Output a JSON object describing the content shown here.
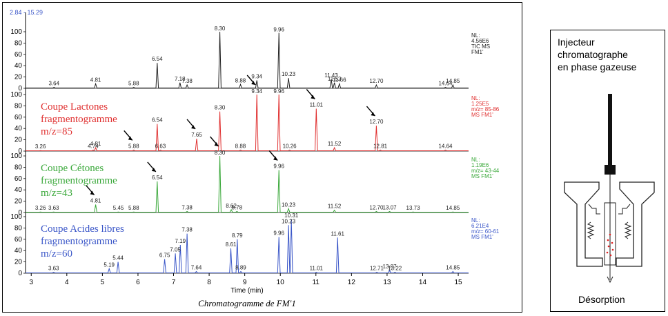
{
  "chart_data": {
    "type": "line",
    "range_label": "2.84 - 15.29",
    "x_axis": {
      "label": "Time (min)",
      "min": 2.84,
      "max": 15.29,
      "ticks": [
        3,
        4,
        5,
        6,
        7,
        8,
        9,
        10,
        11,
        12,
        13,
        14,
        15
      ]
    },
    "y_ticks": [
      "0",
      "20",
      "40",
      "60",
      "80",
      "100"
    ],
    "caption": "Chromatogramme de FM'1",
    "panels": [
      {
        "color": "#222222",
        "nl": [
          "NL:",
          "4.56E6",
          "TIC MS",
          "FM1'"
        ],
        "label": [],
        "peaks": [
          {
            "t": 3.64,
            "h": 2
          },
          {
            "t": 4.81,
            "h": 8
          },
          {
            "t": 5.88,
            "h": 2
          },
          {
            "t": 6.54,
            "h": 45
          },
          {
            "t": 7.18,
            "h": 10
          },
          {
            "t": 7.38,
            "h": 6
          },
          {
            "t": 8.3,
            "h": 100
          },
          {
            "t": 8.88,
            "h": 7
          },
          {
            "t": 9.34,
            "h": 14
          },
          {
            "t": 9.96,
            "h": 98
          },
          {
            "t": 10.23,
            "h": 18
          },
          {
            "t": 11.43,
            "h": 16
          },
          {
            "t": 11.52,
            "h": 10
          },
          {
            "t": 11.66,
            "h": 8
          },
          {
            "t": 12.7,
            "h": 6
          },
          {
            "t": 14.64,
            "h": 2
          },
          {
            "t": 14.85,
            "h": 6
          }
        ],
        "arrows": []
      },
      {
        "color": "#e03030",
        "nl": [
          "NL:",
          "1.25E5",
          "m/z= 85-86",
          "MS FM1'"
        ],
        "label": [
          "Coupe Lactones",
          "fragmentogramme",
          "m/z=85"
        ],
        "peaks": [
          {
            "t": 3.26,
            "h": 1
          },
          {
            "t": 4.74,
            "h": 2
          },
          {
            "t": 4.81,
            "h": 6
          },
          {
            "t": 5.88,
            "h": 2
          },
          {
            "t": 6.54,
            "h": 48
          },
          {
            "t": 6.63,
            "h": 2
          },
          {
            "t": 7.65,
            "h": 22
          },
          {
            "t": 8.3,
            "h": 70
          },
          {
            "t": 8.88,
            "h": 2
          },
          {
            "t": 9.34,
            "h": 100
          },
          {
            "t": 9.96,
            "h": 100
          },
          {
            "t": 10.26,
            "h": 2
          },
          {
            "t": 11.01,
            "h": 75
          },
          {
            "t": 11.52,
            "h": 6
          },
          {
            "t": 12.7,
            "h": 45
          },
          {
            "t": 12.81,
            "h": 2
          },
          {
            "t": 14.64,
            "h": 2
          }
        ],
        "arrows": [
          {
            "t": 5.88,
            "h": 2
          },
          {
            "t": 7.65,
            "h": 22
          },
          {
            "t": 9.34,
            "h": 100
          },
          {
            "t": 11.01,
            "h": 75
          },
          {
            "t": 12.7,
            "h": 45
          }
        ]
      },
      {
        "color": "#3aa83a",
        "nl": [
          "NL:",
          "1.19E6",
          "m/z= 43-44",
          "MS FM1'"
        ],
        "label": [
          "Coupe Cétones",
          "fragmentogramme",
          "m/z=43"
        ],
        "peaks": [
          {
            "t": 3.26,
            "h": 1
          },
          {
            "t": 3.63,
            "h": 1
          },
          {
            "t": 4.81,
            "h": 14
          },
          {
            "t": 5.45,
            "h": 1
          },
          {
            "t": 5.88,
            "h": 1
          },
          {
            "t": 6.54,
            "h": 55
          },
          {
            "t": 7.38,
            "h": 2
          },
          {
            "t": 8.3,
            "h": 100
          },
          {
            "t": 8.62,
            "h": 5
          },
          {
            "t": 8.78,
            "h": 2
          },
          {
            "t": 9.96,
            "h": 75
          },
          {
            "t": 10.23,
            "h": 7
          },
          {
            "t": 11.52,
            "h": 4
          },
          {
            "t": 12.7,
            "h": 2
          },
          {
            "t": 13.07,
            "h": 2
          },
          {
            "t": 13.73,
            "h": 1
          },
          {
            "t": 14.85,
            "h": 1
          }
        ],
        "arrows": [
          {
            "t": 4.81,
            "h": 14
          },
          {
            "t": 6.54,
            "h": 55
          },
          {
            "t": 8.3,
            "h": 100
          },
          {
            "t": 9.96,
            "h": 75
          }
        ]
      },
      {
        "color": "#3a56c8",
        "nl": [
          "NL:",
          "6.21E4",
          "m/z= 60-61",
          "MS FM1'"
        ],
        "label": [
          "Coupe Acides libres",
          "fragmentogramme",
          "m/z=60"
        ],
        "peaks": [
          {
            "t": 3.63,
            "h": 2
          },
          {
            "t": 5.19,
            "h": 8
          },
          {
            "t": 5.44,
            "h": 20
          },
          {
            "t": 6.75,
            "h": 25
          },
          {
            "t": 7.05,
            "h": 35
          },
          {
            "t": 7.19,
            "h": 50
          },
          {
            "t": 7.38,
            "h": 70
          },
          {
            "t": 7.64,
            "h": 3
          },
          {
            "t": 8.61,
            "h": 44
          },
          {
            "t": 8.79,
            "h": 60
          },
          {
            "t": 8.89,
            "h": 3
          },
          {
            "t": 9.96,
            "h": 64
          },
          {
            "t": 10.23,
            "h": 85
          },
          {
            "t": 10.31,
            "h": 95
          },
          {
            "t": 11.01,
            "h": 2
          },
          {
            "t": 11.61,
            "h": 63
          },
          {
            "t": 12.71,
            "h": 2
          },
          {
            "t": 13.07,
            "h": 5
          },
          {
            "t": 13.22,
            "h": 2
          },
          {
            "t": 14.85,
            "h": 3
          }
        ],
        "arrows": []
      }
    ]
  },
  "side_panel": {
    "title_lines": [
      "Injecteur",
      "chromatographe",
      "en phase gazeuse"
    ],
    "bottom_label": "Désorption"
  }
}
